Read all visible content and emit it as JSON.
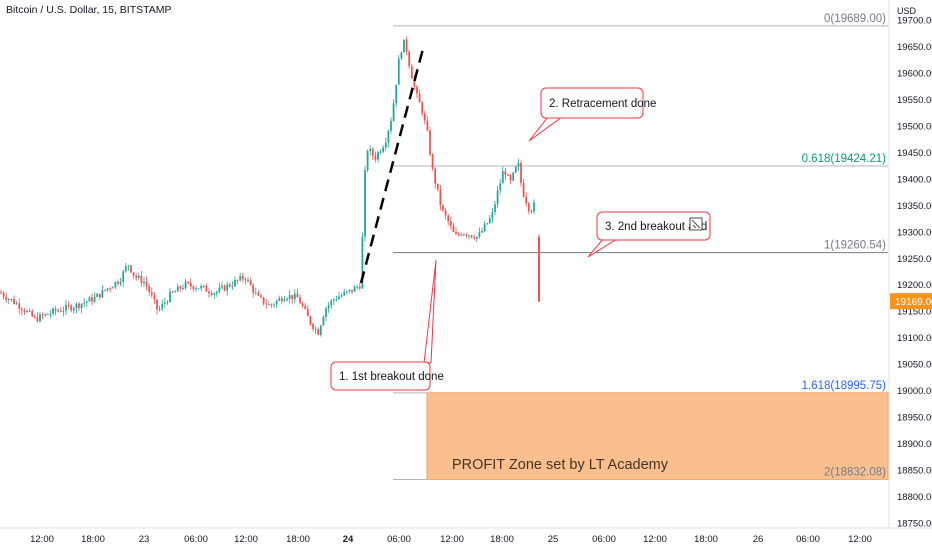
{
  "header": {
    "symbol": "Bitcoin / U.S. Dollar, 15, BITSTAMP"
  },
  "chart_data": {
    "type": "candlestick",
    "ylim": [
      18750,
      19750
    ],
    "y_ticks": [
      {
        "value": 19700,
        "label": "19700.00"
      },
      {
        "value": 19650,
        "label": "19650.00"
      },
      {
        "value": 19600,
        "label": "19600.00"
      },
      {
        "value": 19550,
        "label": "19550.00"
      },
      {
        "value": 19500,
        "label": "19500.00"
      },
      {
        "value": 19450,
        "label": "19450.00"
      },
      {
        "value": 19400,
        "label": "19400.00"
      },
      {
        "value": 19350,
        "label": "19350.00"
      },
      {
        "value": 19300,
        "label": "19300.00"
      },
      {
        "value": 19250,
        "label": "19250.00"
      },
      {
        "value": 19200,
        "label": "19200.00"
      },
      {
        "value": 19150,
        "label": "19150.00"
      },
      {
        "value": 19100,
        "label": "19100.00"
      },
      {
        "value": 19050,
        "label": "19050.00"
      },
      {
        "value": 19000,
        "label": "19000.00"
      },
      {
        "value": 18950,
        "label": "18950.00"
      },
      {
        "value": 18900,
        "label": "18900.00"
      },
      {
        "value": 18850,
        "label": "18850.00"
      },
      {
        "value": 18800,
        "label": "18800.00"
      },
      {
        "value": 18750,
        "label": "18750.00"
      }
    ],
    "y_unit": "USD",
    "x_ticks": [
      {
        "label": "12:00",
        "bold": false
      },
      {
        "label": "18:00",
        "bold": false
      },
      {
        "label": "23",
        "bold": false
      },
      {
        "label": "06:00",
        "bold": false
      },
      {
        "label": "12:00",
        "bold": false
      },
      {
        "label": "18:00",
        "bold": false
      },
      {
        "label": "24",
        "bold": true
      },
      {
        "label": "06:00",
        "bold": false
      },
      {
        "label": "12:00",
        "bold": false
      },
      {
        "label": "18:00",
        "bold": false
      },
      {
        "label": "25",
        "bold": false
      },
      {
        "label": "06:00",
        "bold": false
      },
      {
        "label": "12:00",
        "bold": false
      },
      {
        "label": "18:00",
        "bold": false
      },
      {
        "label": "26",
        "bold": false
      },
      {
        "label": "06:00",
        "bold": false
      },
      {
        "label": "12:00",
        "bold": false
      }
    ],
    "current_price": {
      "value": 19169,
      "label": "19169.00",
      "color": "#f7931a"
    },
    "path": [
      [
        0,
        19185
      ],
      [
        20,
        19160
      ],
      [
        35,
        19135
      ],
      [
        55,
        19150
      ],
      [
        75,
        19160
      ],
      [
        95,
        19175
      ],
      [
        105,
        19190
      ],
      [
        120,
        19210
      ],
      [
        128,
        19240
      ],
      [
        135,
        19215
      ],
      [
        145,
        19205
      ],
      [
        158,
        19150
      ],
      [
        170,
        19180
      ],
      [
        185,
        19200
      ],
      [
        200,
        19195
      ],
      [
        215,
        19185
      ],
      [
        230,
        19200
      ],
      [
        245,
        19215
      ],
      [
        258,
        19175
      ],
      [
        270,
        19160
      ],
      [
        285,
        19180
      ],
      [
        298,
        19175
      ],
      [
        310,
        19130
      ],
      [
        318,
        19110
      ],
      [
        325,
        19155
      ],
      [
        335,
        19175
      ],
      [
        348,
        19185
      ],
      [
        360,
        19200
      ],
      [
        363,
        19310
      ],
      [
        366,
        19460
      ],
      [
        375,
        19440
      ],
      [
        385,
        19470
      ],
      [
        392,
        19520
      ],
      [
        400,
        19640
      ],
      [
        405,
        19660
      ],
      [
        410,
        19610
      ],
      [
        416,
        19560
      ],
      [
        422,
        19530
      ],
      [
        428,
        19480
      ],
      [
        432,
        19420
      ],
      [
        437,
        19380
      ],
      [
        442,
        19340
      ],
      [
        448,
        19320
      ],
      [
        455,
        19290
      ],
      [
        462,
        19300
      ],
      [
        470,
        19295
      ],
      [
        478,
        19290
      ],
      [
        485,
        19310
      ],
      [
        492,
        19330
      ],
      [
        497,
        19370
      ],
      [
        504,
        19420
      ],
      [
        510,
        19390
      ],
      [
        514,
        19410
      ],
      [
        518,
        19430
      ],
      [
        522,
        19380
      ],
      [
        526,
        19360
      ],
      [
        530,
        19340
      ],
      [
        534,
        19350
      ],
      [
        536,
        19330
      ],
      [
        538,
        19290
      ]
    ],
    "fibonacci": {
      "levels": [
        {
          "ratio": "0",
          "price": 19689.0,
          "label": "0(19689.00)",
          "color": "#787b86"
        },
        {
          "ratio": "0.618",
          "price": 19424.21,
          "label": "0.618(19424.21)",
          "color": "#089981"
        },
        {
          "ratio": "1",
          "price": 19260.54,
          "label": "1(19260.54)",
          "color": "#787b86"
        },
        {
          "ratio": "1.618",
          "price": 18995.75,
          "label": "1.618(18995.75)",
          "color": "#2962ff"
        },
        {
          "ratio": "2",
          "price": 18832.08,
          "label": "2(18832.08)",
          "color": "#787b86"
        }
      ]
    },
    "profit_zone": {
      "from": 18832.08,
      "to": 18995.75,
      "label": "PROFIT Zone set by LT Academy",
      "color": "#f9bf8f"
    },
    "annotations": [
      {
        "text": "1. 1st breakout done"
      },
      {
        "text": "2. Retracement done"
      },
      {
        "text": "3. 2nd breakout and"
      }
    ],
    "colors": {
      "up": "#26a69a",
      "down": "#ef5350",
      "trendline": "#000000",
      "callout_border": "#f23645"
    }
  }
}
